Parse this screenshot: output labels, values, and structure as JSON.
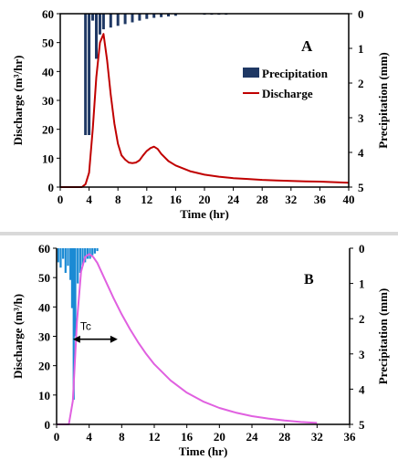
{
  "chart_data": [
    {
      "panel_label": "A",
      "type": "line",
      "xlabel": "Time (hr)",
      "ylabel": "Discharge (m³/hr)",
      "y2label": "Precipitation (mm)",
      "xlim": [
        0,
        40
      ],
      "ylim": [
        0,
        60
      ],
      "y2lim": [
        0,
        5
      ],
      "xticks": [
        "0",
        "4",
        "8",
        "12",
        "16",
        "20",
        "24",
        "28",
        "32",
        "36",
        "40"
      ],
      "yticks": [
        "0",
        "10",
        "20",
        "30",
        "40",
        "50",
        "60"
      ],
      "y2ticks": [
        "0",
        "1",
        "2",
        "3",
        "4",
        "5"
      ],
      "legend_placement": "top-right",
      "legend": [
        {
          "name": "Precipitation",
          "color": "#1f3864",
          "kind": "bar"
        },
        {
          "name": "Discharge",
          "color": "#c00000",
          "kind": "line"
        }
      ],
      "series": [
        {
          "name": "Discharge",
          "type": "line",
          "color": "#c00000",
          "x": [
            0,
            3,
            3.5,
            4,
            4.5,
            5,
            5.5,
            6,
            6.5,
            7,
            7.5,
            8,
            8.5,
            9,
            9.5,
            10,
            10.5,
            11,
            11.5,
            12,
            12.5,
            13,
            13.5,
            14,
            15,
            16,
            18,
            20,
            22,
            24,
            26,
            28,
            30,
            32,
            34,
            36,
            38,
            40
          ],
          "y": [
            0,
            0,
            1,
            5,
            20,
            38,
            50,
            53,
            44,
            32,
            22,
            15,
            11,
            9.5,
            8.5,
            8.3,
            8.5,
            9.3,
            11,
            12.5,
            13.5,
            14,
            13.2,
            11.5,
            9,
            7.5,
            5.5,
            4.3,
            3.6,
            3.1,
            2.8,
            2.5,
            2.3,
            2.1,
            2,
            1.9,
            1.7,
            1.5
          ]
        },
        {
          "name": "Precipitation",
          "type": "bar",
          "axis": "right",
          "color": "#1f3864",
          "x": [
            3.5,
            4,
            4.5,
            5,
            5.5,
            6,
            7,
            8,
            9,
            10,
            11,
            12,
            13,
            14,
            15,
            16,
            20,
            21,
            22,
            23
          ],
          "y": [
            3.5,
            3.5,
            0.2,
            1.3,
            0.6,
            0.45,
            0.4,
            0.35,
            0.3,
            0.25,
            0.2,
            0.15,
            0.12,
            0.1,
            0.08,
            0.06,
            0.03,
            0.03,
            0.03,
            0.03
          ]
        }
      ]
    },
    {
      "panel_label": "B",
      "type": "line",
      "xlabel": "Time (hr)",
      "ylabel": "Discharge (m³/h)",
      "y2label": "Precipitation (mm)",
      "xlim": [
        0,
        36
      ],
      "ylim": [
        0,
        60
      ],
      "y2lim": [
        0,
        5
      ],
      "xticks": [
        "0",
        "4",
        "8",
        "12",
        "16",
        "20",
        "24",
        "28",
        "32",
        "36"
      ],
      "yticks": [
        "0",
        "10",
        "20",
        "30",
        "40",
        "50",
        "60"
      ],
      "y2ticks": [
        "0",
        "1",
        "2",
        "3",
        "4",
        "5"
      ],
      "annotation": {
        "text": "Tc",
        "from_x": 2,
        "to_x": 7.5,
        "y": 29
      },
      "series": [
        {
          "name": "Discharge",
          "type": "line",
          "color": "#e060e0",
          "x": [
            0,
            1.5,
            2,
            2.5,
            3,
            3.5,
            4,
            4.5,
            5,
            6,
            7,
            8,
            9,
            10,
            11,
            12,
            14,
            16,
            18,
            20,
            22,
            24,
            26,
            28,
            30,
            32
          ],
          "y": [
            0,
            0,
            8,
            35,
            52,
            57,
            58,
            57,
            55,
            49,
            43,
            37.5,
            32.5,
            28,
            24,
            20.5,
            15,
            10.8,
            7.8,
            5.6,
            4,
            2.8,
            2,
            1.3,
            0.8,
            0.5
          ]
        },
        {
          "name": "Precipitation",
          "type": "bar",
          "axis": "right",
          "color": "#1a8ad4",
          "x": [
            0.2,
            0.5,
            0.8,
            1.1,
            1.4,
            1.7,
            1.9,
            2.1,
            2.3,
            2.6,
            2.9,
            3.2,
            3.5,
            3.8,
            4.1,
            4.4,
            4.7,
            5
          ],
          "y": [
            0.4,
            0.55,
            0.3,
            0.7,
            0.5,
            0.9,
            1.7,
            4.3,
            2.5,
            1,
            0.7,
            0.5,
            0.4,
            0.3,
            0.3,
            0.2,
            0.15,
            0.08
          ]
        }
      ]
    }
  ]
}
